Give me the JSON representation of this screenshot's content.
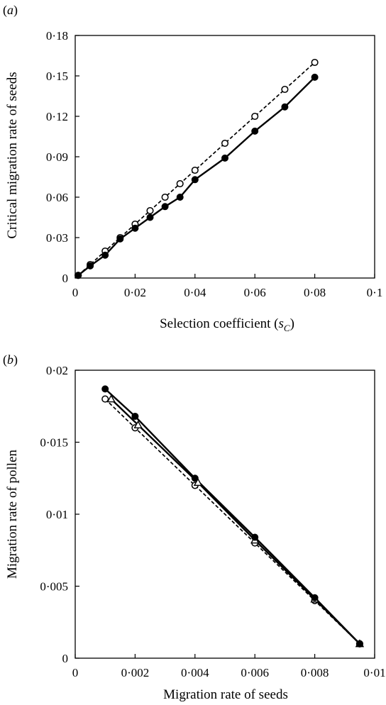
{
  "chart_data": [
    {
      "type": "line",
      "panel_label": "a",
      "xlabel_prefix": "Selection coefficient (",
      "xlabel_symbol": "s",
      "xlabel_sub": "C",
      "xlabel_suffix": ")",
      "ylabel": "Critical migration rate of seeds",
      "xlim": [
        0,
        0.1
      ],
      "ylim": [
        0,
        0.18
      ],
      "xticks": [
        "0",
        "0·02",
        "0·04",
        "0·06",
        "0·08",
        "0·1"
      ],
      "xtick_values": [
        0,
        0.02,
        0.04,
        0.06,
        0.08,
        0.1
      ],
      "yticks": [
        "0",
        "0·03",
        "0·06",
        "0·09",
        "0·12",
        "0·15",
        "0·18"
      ],
      "ytick_values": [
        0,
        0.03,
        0.06,
        0.09,
        0.12,
        0.15,
        0.18
      ],
      "grid": false,
      "series": [
        {
          "style": "dashed",
          "marker": "open-circle",
          "color": "#000000",
          "x": [
            0.001,
            0.005,
            0.01,
            0.015,
            0.02,
            0.025,
            0.03,
            0.035,
            0.04,
            0.05,
            0.06,
            0.07,
            0.08
          ],
          "y": [
            0.002,
            0.01,
            0.02,
            0.03,
            0.04,
            0.05,
            0.06,
            0.07,
            0.08,
            0.1,
            0.12,
            0.14,
            0.16
          ]
        },
        {
          "style": "solid",
          "marker": "filled-circle",
          "color": "#000000",
          "x": [
            0.001,
            0.005,
            0.01,
            0.015,
            0.02,
            0.025,
            0.03,
            0.035,
            0.04,
            0.05,
            0.06,
            0.07,
            0.08
          ],
          "y": [
            0.002,
            0.009,
            0.017,
            0.029,
            0.037,
            0.045,
            0.053,
            0.06,
            0.073,
            0.089,
            0.109,
            0.127,
            0.149
          ]
        }
      ]
    },
    {
      "type": "line",
      "panel_label": "b",
      "xlabel": "Migration rate of seeds",
      "ylabel": "Migration rate of pollen",
      "xlim": [
        0,
        0.01
      ],
      "ylim": [
        0,
        0.02
      ],
      "xticks": [
        "0",
        "0·002",
        "0·004",
        "0·006",
        "0·008",
        "0·01"
      ],
      "xtick_values": [
        0,
        0.002,
        0.004,
        0.006,
        0.008,
        0.01
      ],
      "yticks": [
        "0",
        "0·005",
        "0·01",
        "0·015",
        "0·02"
      ],
      "ytick_values": [
        0,
        0.005,
        0.01,
        0.015,
        0.02
      ],
      "grid": false,
      "series": [
        {
          "style": "dashed",
          "marker": "open-circle",
          "color": "#000000",
          "x": [
            0.001,
            0.002,
            0.004,
            0.006,
            0.008,
            0.0095
          ],
          "y": [
            0.018,
            0.016,
            0.012,
            0.008,
            0.004,
            0.001
          ]
        },
        {
          "style": "solid",
          "marker": "open-triangle",
          "color": "#000000",
          "x": [
            0.0012,
            0.0021,
            0.0041,
            0.006,
            0.008,
            0.0095
          ],
          "y": [
            0.018,
            0.0162,
            0.0122,
            0.0082,
            0.0041,
            0.001
          ]
        },
        {
          "style": "solid",
          "marker": "filled-circle",
          "color": "#000000",
          "x": [
            0.001,
            0.002,
            0.004,
            0.006,
            0.008,
            0.0095
          ],
          "y": [
            0.0187,
            0.0168,
            0.0125,
            0.0084,
            0.0042,
            0.001
          ]
        }
      ]
    }
  ]
}
